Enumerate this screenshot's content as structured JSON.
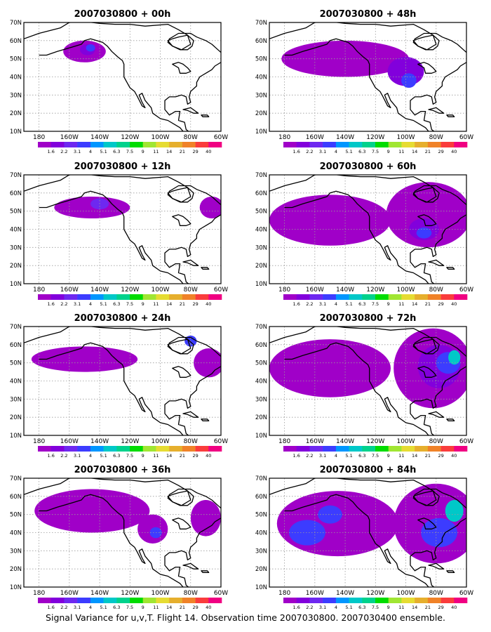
{
  "caption": "Signal Variance for u,v,T. Flight 14. Observation time 2007030800. 2007030400 ensemble.",
  "map_axes": {
    "lon_labels": [
      "180",
      "160W",
      "140W",
      "120W",
      "100W",
      "80W",
      "60W"
    ],
    "lat_labels": [
      "10N",
      "20N",
      "30N",
      "40N",
      "50N",
      "60N",
      "70N"
    ]
  },
  "colorbar": {
    "labels": [
      "1.6",
      "2.2",
      "3.1",
      "4",
      "5.1",
      "6.3",
      "7.5",
      "9",
      "11",
      "14",
      "21",
      "29",
      "40"
    ],
    "colors": [
      "#a000c8",
      "#8200dc",
      "#6e28f0",
      "#3c3cff",
      "#0096ff",
      "#00c8c8",
      "#00d28c",
      "#00dc00",
      "#a0e632",
      "#e6dc32",
      "#e6af2d",
      "#f08228",
      "#fa3c3c",
      "#f00082"
    ]
  },
  "panels": [
    {
      "title": "2007030800 + 00h",
      "blobs": [
        {
          "lon": -150,
          "lat": 54,
          "rx": 14,
          "ry": 6,
          "level": 0
        },
        {
          "lon": -148,
          "lat": 55,
          "rx": 5,
          "ry": 3,
          "level": 1
        },
        {
          "lon": -146,
          "lat": 56,
          "rx": 3,
          "ry": 2,
          "level": 3
        }
      ]
    },
    {
      "title": "2007030800 + 48h",
      "blobs": [
        {
          "lon": -140,
          "lat": 50,
          "rx": 42,
          "ry": 10,
          "level": 0
        },
        {
          "lon": -100,
          "lat": 43,
          "rx": 12,
          "ry": 8,
          "level": 1
        },
        {
          "lon": -98,
          "lat": 38,
          "rx": 5,
          "ry": 4,
          "level": 3
        }
      ]
    },
    {
      "title": "2007030800 + 12h",
      "blobs": [
        {
          "lon": -145,
          "lat": 52,
          "rx": 25,
          "ry": 6,
          "level": 0
        },
        {
          "lon": -66,
          "lat": 52,
          "rx": 8,
          "ry": 6,
          "level": 0
        },
        {
          "lon": -140,
          "lat": 54,
          "rx": 6,
          "ry": 3,
          "level": 2
        }
      ]
    },
    {
      "title": "2007030800 + 60h",
      "blobs": [
        {
          "lon": -150,
          "lat": 45,
          "rx": 40,
          "ry": 14,
          "level": 0
        },
        {
          "lon": -85,
          "lat": 48,
          "rx": 28,
          "ry": 18,
          "level": 0
        },
        {
          "lon": -88,
          "lat": 40,
          "rx": 10,
          "ry": 6,
          "level": 1
        },
        {
          "lon": -88,
          "lat": 38,
          "rx": 5,
          "ry": 3,
          "level": 3
        }
      ]
    },
    {
      "title": "2007030800 + 24h",
      "blobs": [
        {
          "lon": -150,
          "lat": 52,
          "rx": 35,
          "ry": 7,
          "level": 0
        },
        {
          "lon": -68,
          "lat": 50,
          "rx": 10,
          "ry": 8,
          "level": 0
        },
        {
          "lon": -80,
          "lat": 62,
          "rx": 4,
          "ry": 3,
          "level": 3
        }
      ]
    },
    {
      "title": "2007030800 + 72h",
      "blobs": [
        {
          "lon": -150,
          "lat": 47,
          "rx": 40,
          "ry": 16,
          "level": 0
        },
        {
          "lon": -82,
          "lat": 47,
          "rx": 26,
          "ry": 22,
          "level": 0
        },
        {
          "lon": -78,
          "lat": 48,
          "rx": 14,
          "ry": 12,
          "level": 1
        },
        {
          "lon": -72,
          "lat": 50,
          "rx": 8,
          "ry": 6,
          "level": 3
        },
        {
          "lon": -68,
          "lat": 53,
          "rx": 4,
          "ry": 4,
          "level": 5
        }
      ]
    },
    {
      "title": "2007030800 + 36h",
      "blobs": [
        {
          "lon": -145,
          "lat": 52,
          "rx": 38,
          "ry": 12,
          "level": 0
        },
        {
          "lon": -105,
          "lat": 42,
          "rx": 10,
          "ry": 8,
          "level": 0
        },
        {
          "lon": -70,
          "lat": 48,
          "rx": 10,
          "ry": 10,
          "level": 0
        },
        {
          "lon": -103,
          "lat": 40,
          "rx": 4,
          "ry": 3,
          "level": 3
        }
      ]
    },
    {
      "title": "2007030800 + 84h",
      "blobs": [
        {
          "lon": -145,
          "lat": 45,
          "rx": 40,
          "ry": 18,
          "level": 0
        },
        {
          "lon": -80,
          "lat": 45,
          "rx": 28,
          "ry": 22,
          "level": 0
        },
        {
          "lon": -165,
          "lat": 40,
          "rx": 12,
          "ry": 7,
          "level": 3
        },
        {
          "lon": -150,
          "lat": 50,
          "rx": 8,
          "ry": 5,
          "level": 3
        },
        {
          "lon": -78,
          "lat": 40,
          "rx": 12,
          "ry": 8,
          "level": 3
        },
        {
          "lon": -68,
          "lat": 52,
          "rx": 6,
          "ry": 6,
          "level": 5
        }
      ]
    }
  ]
}
